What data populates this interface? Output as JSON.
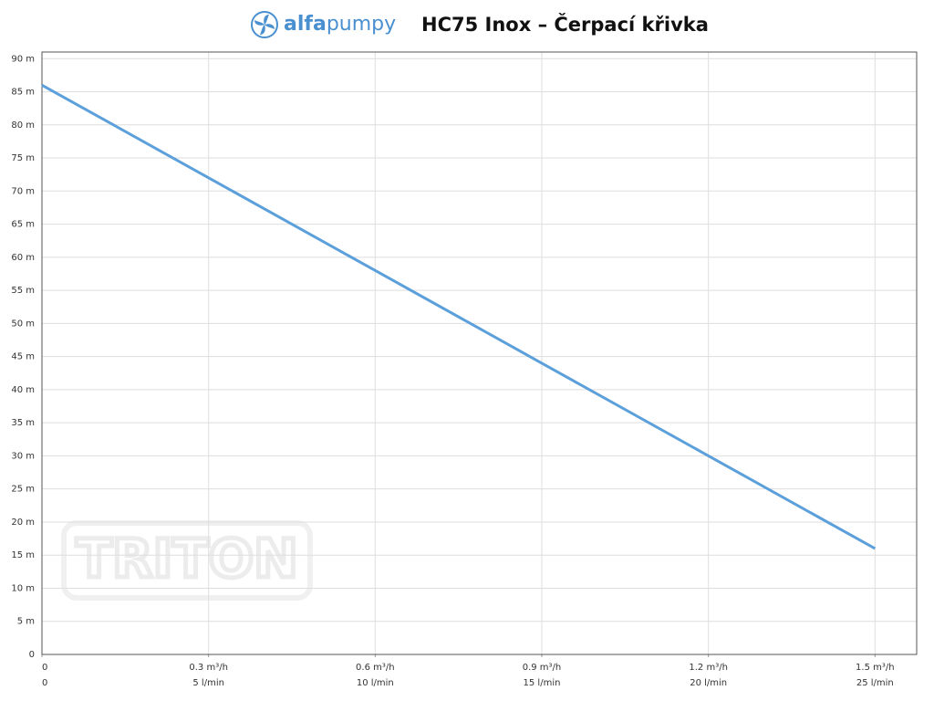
{
  "chart_data": {
    "type": "line",
    "logo": [
      "alfa",
      "pumpy"
    ],
    "title": "HC75 Inox – Čerpací křivka",
    "watermark": "TRITON",
    "x": [
      0,
      0.3,
      0.6,
      0.9,
      1.2,
      1.5
    ],
    "series": [
      {
        "color": "#5b9fdb",
        "values": [
          86,
          72,
          58,
          44,
          30,
          16
        ]
      }
    ],
    "xlim": [
      0,
      1.575
    ],
    "xticks": [
      0,
      {
        "value": 0.3,
        "label": "0.3 m³/h"
      },
      {
        "value": 0.6,
        "label": "0.6 m³/h"
      },
      {
        "value": 0.9,
        "label": "0.9 m³/h"
      },
      {
        "value": 1.2,
        "label": "1.2 m³/h"
      },
      {
        "value": 1.5,
        "label": "1.5 m³/h"
      }
    ],
    "x2lim": [
      0,
      26.25
    ],
    "x2ticks": [
      0,
      {
        "value": 5,
        "label": "5 l/min"
      },
      {
        "value": 10,
        "label": "10 l/min"
      },
      {
        "value": 15,
        "label": "15 l/min"
      },
      {
        "value": 20,
        "label": "20 l/min"
      },
      {
        "value": 25,
        "label": "25 l/min"
      }
    ],
    "ylim": [
      0,
      91
    ],
    "yticks": [
      0,
      {
        "value": 5,
        "label": "5 m"
      },
      {
        "value": 10,
        "label": "10 m"
      },
      {
        "value": 15,
        "label": "15 m"
      },
      {
        "value": 20,
        "label": "20 m"
      },
      {
        "value": 25,
        "label": "25 m"
      },
      {
        "value": 30,
        "label": "30 m"
      },
      {
        "value": 35,
        "label": "35 m"
      },
      {
        "value": 40,
        "label": "40 m"
      },
      {
        "value": 45,
        "label": "45 m"
      },
      {
        "value": 50,
        "label": "50 m"
      },
      {
        "value": 55,
        "label": "55 m"
      },
      {
        "value": 60,
        "label": "60 m"
      },
      {
        "value": 65,
        "label": "65 m"
      },
      {
        "value": 70,
        "label": "70 m"
      },
      {
        "value": 75,
        "label": "75 m"
      },
      {
        "value": 80,
        "label": "80 m"
      },
      {
        "value": 85,
        "label": "85 m"
      },
      {
        "value": 90,
        "label": "90 m"
      }
    ],
    "grid": true
  }
}
